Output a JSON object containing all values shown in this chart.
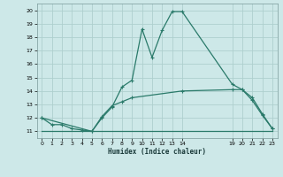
{
  "xlabel": "Humidex (Indice chaleur)",
  "bg_color": "#cde8e8",
  "grid_color": "#aed0ce",
  "line_color": "#2a7a6a",
  "x_labels": [
    "0",
    "1",
    "2",
    "3",
    "4",
    "5",
    "6",
    "7",
    "8",
    "9",
    "10",
    "11",
    "12",
    "13",
    "14",
    "",
    "",
    "",
    "",
    "19",
    "20",
    "21",
    "22",
    "23"
  ],
  "xlim": [
    -0.5,
    23.5
  ],
  "ylim": [
    10.5,
    20.5
  ],
  "y_ticks": [
    11,
    12,
    13,
    14,
    15,
    16,
    17,
    18,
    19,
    20
  ],
  "curve1_x": [
    0,
    1,
    2,
    3,
    4,
    5,
    6,
    7,
    8,
    9,
    10,
    11,
    12,
    13,
    14,
    19,
    20,
    21,
    22,
    23
  ],
  "curve1_y": [
    12.0,
    11.5,
    11.5,
    11.2,
    11.1,
    11.0,
    12.0,
    12.8,
    14.3,
    14.8,
    18.6,
    16.5,
    18.5,
    19.9,
    19.9,
    14.5,
    14.1,
    13.3,
    12.2,
    11.2
  ],
  "curve2_x": [
    0,
    5,
    6,
    7,
    8,
    9,
    14,
    19,
    20,
    21,
    22,
    23
  ],
  "curve2_y": [
    12.0,
    11.0,
    12.1,
    12.9,
    13.2,
    13.5,
    14.0,
    14.1,
    14.1,
    13.5,
    12.3,
    11.2
  ],
  "line3_x": [
    0,
    23
  ],
  "line3_y": [
    11.0,
    11.0
  ]
}
